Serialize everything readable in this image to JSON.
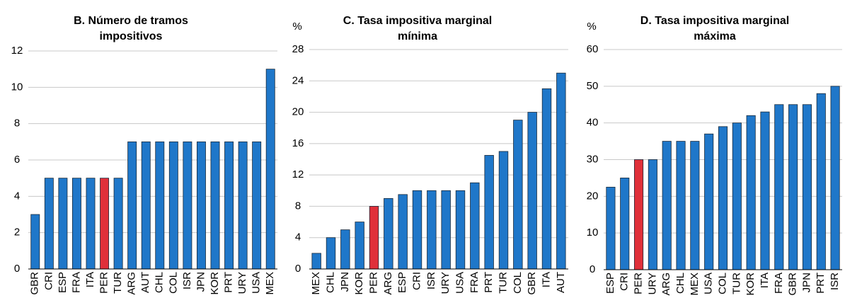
{
  "chart_data": [
    {
      "type": "bar",
      "title": [
        "B. Número de tramos",
        "impositivos"
      ],
      "categories": [
        "GBR",
        "CRI",
        "ESP",
        "FRA",
        "ITA",
        "PER",
        "TUR",
        "ARG",
        "AUT",
        "CHL",
        "COL",
        "ISR",
        "JPN",
        "KOR",
        "PRT",
        "URY",
        "USA",
        "MEX"
      ],
      "values": [
        3,
        5,
        5,
        5,
        5,
        5,
        5,
        7,
        7,
        7,
        7,
        7,
        7,
        7,
        7,
        7,
        7,
        11
      ],
      "colors": [
        "#1f77c9",
        "#1f77c9",
        "#1f77c9",
        "#1f77c9",
        "#1f77c9",
        "#e0303a",
        "#1f77c9",
        "#1f77c9",
        "#1f77c9",
        "#1f77c9",
        "#1f77c9",
        "#1f77c9",
        "#1f77c9",
        "#1f77c9",
        "#1f77c9",
        "#1f77c9",
        "#1f77c9",
        "#1f77c9"
      ],
      "ylim": [
        0,
        12
      ],
      "yticks": [
        0,
        2,
        4,
        6,
        8,
        10,
        12
      ],
      "grid": true
    },
    {
      "type": "bar",
      "title": [
        "C. Tasa impositiva marginal",
        "mínima"
      ],
      "ylabel": "%",
      "categories": [
        "MEX",
        "CHL",
        "JPN",
        "KOR",
        "PER",
        "ARG",
        "ESP",
        "CRI",
        "ISR",
        "URY",
        "USA",
        "FRA",
        "PRT",
        "TUR",
        "COL",
        "GBR",
        "ITA",
        "AUT"
      ],
      "values": [
        2,
        4,
        5,
        6,
        8,
        9,
        9.5,
        10,
        10,
        10,
        10,
        11,
        14.5,
        15,
        19,
        20,
        23,
        25
      ],
      "colors": [
        "#1f77c9",
        "#1f77c9",
        "#1f77c9",
        "#1f77c9",
        "#e0303a",
        "#1f77c9",
        "#1f77c9",
        "#1f77c9",
        "#1f77c9",
        "#1f77c9",
        "#1f77c9",
        "#1f77c9",
        "#1f77c9",
        "#1f77c9",
        "#1f77c9",
        "#1f77c9",
        "#1f77c9",
        "#1f77c9"
      ],
      "ylim": [
        0,
        28
      ],
      "yticks": [
        0,
        4,
        8,
        12,
        16,
        20,
        24,
        28
      ],
      "grid": true
    },
    {
      "type": "bar",
      "title": [
        "D. Tasa impositiva marginal",
        "máxima"
      ],
      "ylabel": "%",
      "categories": [
        "ESP",
        "CRI",
        "PER",
        "URY",
        "ARG",
        "CHL",
        "MEX",
        "USA",
        "COL",
        "TUR",
        "KOR",
        "ITA",
        "FRA",
        "GBR",
        "JPN",
        "PRT",
        "ISR"
      ],
      "values": [
        22.5,
        25,
        30,
        30,
        35,
        35,
        35,
        37,
        39,
        40,
        42,
        43,
        45,
        45,
        45,
        48,
        50
      ],
      "colors": [
        "#1f77c9",
        "#1f77c9",
        "#e0303a",
        "#1f77c9",
        "#1f77c9",
        "#1f77c9",
        "#1f77c9",
        "#1f77c9",
        "#1f77c9",
        "#1f77c9",
        "#1f77c9",
        "#1f77c9",
        "#1f77c9",
        "#1f77c9",
        "#1f77c9",
        "#1f77c9",
        "#1f77c9"
      ],
      "ylim": [
        0,
        60
      ],
      "yticks": [
        0,
        10,
        20,
        30,
        40,
        50,
        60
      ],
      "grid": true
    }
  ]
}
